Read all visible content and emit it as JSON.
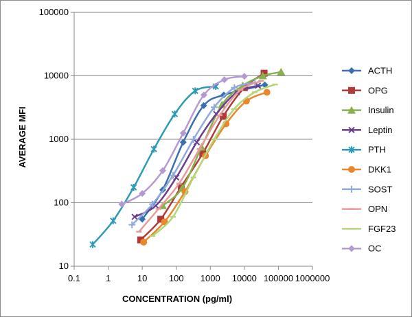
{
  "chart_data": {
    "type": "scatter",
    "xlabel": "CONCENTRATION (pg/ml)",
    "ylabel": "AVERAGE MFI",
    "x_scale": "log",
    "y_scale": "log",
    "xlim": [
      0.1,
      1000000
    ],
    "ylim": [
      10,
      100000
    ],
    "x_ticks": [
      "0.1",
      "1",
      "10",
      "100",
      "1000",
      "10000",
      "100000",
      "1000000"
    ],
    "y_ticks": [
      "10",
      "100",
      "1000",
      "10000",
      "100000"
    ],
    "grid": "horizontal major lines",
    "legend_position": "right",
    "series": [
      {
        "name": "ACTH",
        "color": "#3a6fb0",
        "marker": "diamond",
        "x": [
          10,
          40,
          160,
          640,
          2500,
          40000
        ],
        "y": [
          55,
          160,
          900,
          3400,
          5000,
          7200
        ]
      },
      {
        "name": "OPG",
        "color": "#b03a3a",
        "marker": "square",
        "x": [
          9,
          35,
          140,
          600,
          2400,
          10000,
          38000
        ],
        "y": [
          26,
          55,
          180,
          600,
          2300,
          6500,
          11000
        ]
      },
      {
        "name": "Insulin",
        "color": "#88b04b",
        "marker": "triangle",
        "x": [
          40,
          150,
          550,
          2200,
          9000,
          35000,
          120000
        ],
        "y": [
          90,
          170,
          750,
          3500,
          7000,
          10000,
          11500
        ]
      },
      {
        "name": "Leptin",
        "color": "#6a3d8f",
        "marker": "x",
        "x": [
          6,
          25,
          100,
          400,
          1500,
          6000,
          25000
        ],
        "y": [
          60,
          90,
          250,
          900,
          2500,
          5500,
          7000
        ]
      },
      {
        "name": "PTH",
        "color": "#2e9bb5",
        "marker": "star",
        "x": [
          0.35,
          1.4,
          5.6,
          22,
          90,
          360,
          1450
        ],
        "y": [
          22,
          52,
          175,
          700,
          2500,
          5800,
          6800
        ]
      },
      {
        "name": "DKK1",
        "color": "#e8872c",
        "marker": "circle",
        "x": [
          11,
          45,
          180,
          720,
          2900,
          11500,
          46000
        ],
        "y": [
          24,
          50,
          150,
          550,
          1750,
          4000,
          5500
        ]
      },
      {
        "name": "SOST",
        "color": "#8faadc",
        "marker": "plus",
        "x": [
          5,
          20,
          80,
          320,
          1300,
          5100,
          20500
        ],
        "y": [
          45,
          95,
          270,
          1000,
          3200,
          6500,
          7800
        ]
      },
      {
        "name": "OPN",
        "color": "#e89a96",
        "marker": "dash",
        "x": [
          8,
          30,
          120,
          480,
          1900,
          7700,
          31000
        ],
        "y": [
          35,
          80,
          200,
          700,
          2400,
          6000,
          8300
        ]
      },
      {
        "name": "FGF23",
        "color": "#b5d67a",
        "marker": "dash",
        "x": [
          20,
          80,
          320,
          1300,
          5000,
          20000,
          80000
        ],
        "y": [
          30,
          60,
          250,
          1000,
          3000,
          5500,
          7300
        ]
      },
      {
        "name": "OC",
        "color": "#b49ad2",
        "marker": "diamond",
        "x": [
          2.5,
          10,
          40,
          160,
          650,
          2600,
          10000
        ],
        "y": [
          95,
          140,
          320,
          1250,
          5000,
          8700,
          9800
        ]
      }
    ]
  }
}
